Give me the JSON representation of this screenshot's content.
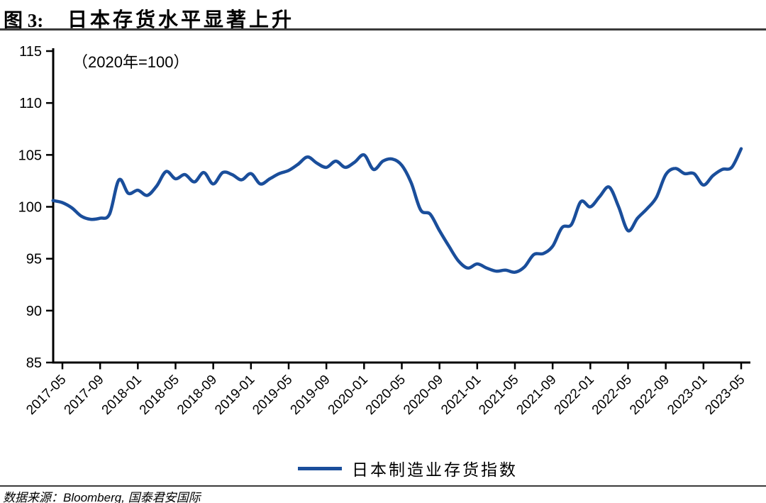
{
  "figure": {
    "label": "图 3:",
    "title": "日本存货水平显著上升"
  },
  "chart_data": {
    "type": "line",
    "title": "日本存货水平显著上升",
    "annotation": "（2020年=100）",
    "grid": false,
    "legend_position": "bottom",
    "ylim": [
      85,
      115
    ],
    "yticks": [
      85,
      90,
      95,
      100,
      105,
      110,
      115
    ],
    "xtick_months": [
      "01",
      "05",
      "09"
    ],
    "x": [
      "2017-04",
      "2017-05",
      "2017-06",
      "2017-07",
      "2017-08",
      "2017-09",
      "2017-10",
      "2017-11",
      "2017-12",
      "2018-01",
      "2018-02",
      "2018-03",
      "2018-04",
      "2018-05",
      "2018-06",
      "2018-07",
      "2018-08",
      "2018-09",
      "2018-10",
      "2018-11",
      "2018-12",
      "2019-01",
      "2019-02",
      "2019-03",
      "2019-04",
      "2019-05",
      "2019-06",
      "2019-07",
      "2019-08",
      "2019-09",
      "2019-10",
      "2019-11",
      "2019-12",
      "2020-01",
      "2020-02",
      "2020-03",
      "2020-04",
      "2020-05",
      "2020-06",
      "2020-07",
      "2020-08",
      "2020-09",
      "2020-10",
      "2020-11",
      "2020-12",
      "2021-01",
      "2021-02",
      "2021-03",
      "2021-04",
      "2021-05",
      "2021-06",
      "2021-07",
      "2021-08",
      "2021-09",
      "2021-10",
      "2021-11",
      "2021-12",
      "2022-01",
      "2022-02",
      "2022-03",
      "2022-04",
      "2022-05",
      "2022-06",
      "2022-07",
      "2022-08",
      "2022-09",
      "2022-10",
      "2022-11",
      "2022-12",
      "2023-01",
      "2023-02",
      "2023-03",
      "2023-04",
      "2023-05"
    ],
    "series": [
      {
        "name": "日本制造业存货指数",
        "color": "#1a4e9b",
        "values": [
          100.6,
          100.4,
          99.9,
          99.1,
          98.8,
          98.9,
          99.3,
          102.6,
          101.3,
          101.6,
          101.1,
          102.0,
          103.4,
          102.7,
          103.1,
          102.4,
          103.3,
          102.2,
          103.3,
          103.1,
          102.6,
          103.2,
          102.2,
          102.7,
          103.2,
          103.5,
          104.1,
          104.8,
          104.2,
          103.8,
          104.4,
          103.8,
          104.3,
          105.0,
          103.6,
          104.4,
          104.6,
          104.0,
          102.3,
          99.7,
          99.3,
          97.7,
          96.2,
          94.8,
          94.1,
          94.5,
          94.1,
          93.8,
          93.9,
          93.7,
          94.2,
          95.4,
          95.5,
          96.2,
          98.0,
          98.3,
          100.5,
          100.0,
          101.0,
          101.9,
          100.0,
          97.7,
          98.9,
          99.8,
          100.9,
          103.1,
          103.7,
          103.2,
          103.2,
          102.1,
          103.0,
          103.6,
          103.8,
          105.6
        ]
      }
    ]
  },
  "legend": {
    "label": "日本制造业存货指数"
  },
  "footer": {
    "source": "数据来源：Bloomberg, 国泰君安国际"
  }
}
